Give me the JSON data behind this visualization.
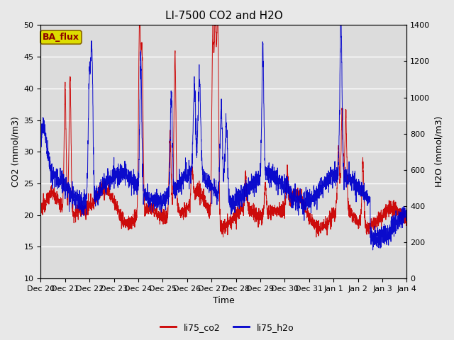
{
  "title": "LI-7500 CO2 and H2O",
  "ylabel_left": "CO2 (mmol/m3)",
  "ylabel_right": "H2O (mmol/m3)",
  "xlabel": "Time",
  "ylim_left": [
    10,
    50
  ],
  "ylim_right": [
    0,
    1400
  ],
  "fig_bg_color": "#e8e8e8",
  "plot_bg_color": "#dcdcdc",
  "co2_color": "#cc0000",
  "h2o_color": "#0000cc",
  "annotation_text": "BA_flux",
  "annotation_bg": "#dddd00",
  "annotation_border": "#886600",
  "xtick_labels": [
    "Dec 20",
    "Dec 21",
    "Dec 22",
    "Dec 23",
    "Dec 24",
    "Dec 25",
    "Dec 26",
    "Dec 27",
    "Dec 28",
    "Dec 29",
    "Dec 30",
    "Dec 31",
    "Jan 1",
    "Jan 2",
    "Jan 3",
    "Jan 4"
  ],
  "yticks_left": [
    10,
    15,
    20,
    25,
    30,
    35,
    40,
    45,
    50
  ],
  "yticks_right": [
    0,
    200,
    400,
    600,
    800,
    1000,
    1200,
    1400
  ],
  "legend_co2": "li75_co2",
  "legend_h2o": "li75_h2o",
  "title_fontsize": 11,
  "label_fontsize": 9,
  "tick_fontsize": 8
}
